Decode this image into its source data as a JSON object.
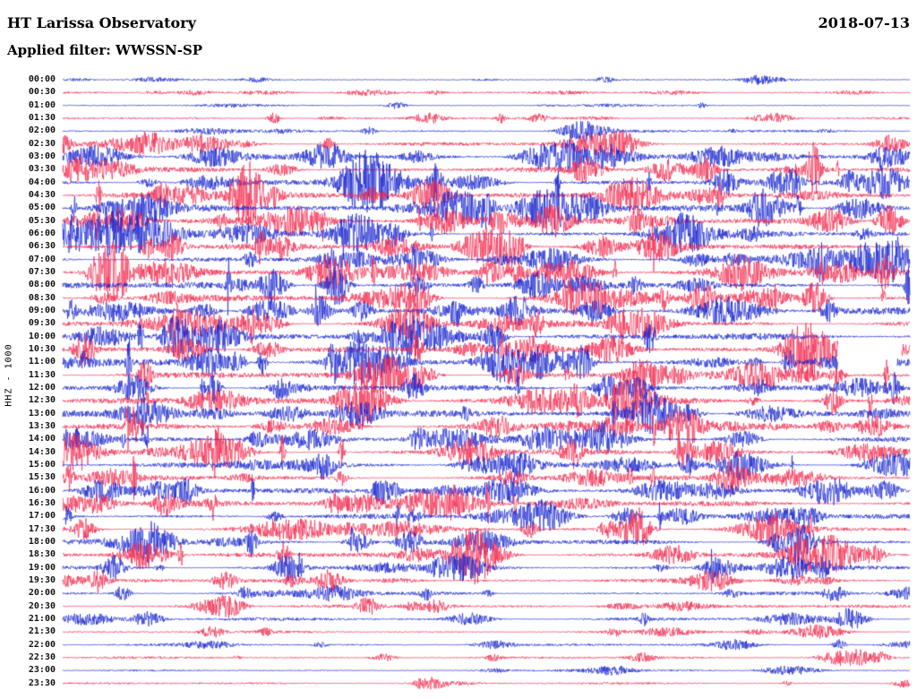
{
  "header": {
    "title": "HT Larissa Observatory",
    "date": "2018-07-13",
    "filter_label": "Applied filter: WWSSN-SP"
  },
  "chart_data": {
    "type": "line",
    "chart_kind": "helicorder-seismogram",
    "title": "HT Larissa Observatory",
    "date": "2018-07-13",
    "filter": "WWSSN-SP",
    "ylabel": "HHZ - 1000",
    "minutes_per_line": 30,
    "line_count": 48,
    "start_time": "00:00",
    "end_time": "23:30",
    "legend_position": "none",
    "grid": false,
    "colors": {
      "blue": "#1522cf",
      "red": "#f2274c"
    },
    "traces": [
      {
        "time": "00:00",
        "color": "blue",
        "activity": 0.8
      },
      {
        "time": "00:30",
        "color": "red",
        "activity": 1.0
      },
      {
        "time": "01:00",
        "color": "blue",
        "activity": 0.9
      },
      {
        "time": "01:30",
        "color": "red",
        "activity": 1.5
      },
      {
        "time": "02:00",
        "color": "blue",
        "activity": 1.7
      },
      {
        "time": "02:30",
        "color": "red",
        "activity": 2.3
      },
      {
        "time": "03:00",
        "color": "blue",
        "activity": 3.0
      },
      {
        "time": "03:30",
        "color": "red",
        "activity": 3.2
      },
      {
        "time": "04:00",
        "color": "blue",
        "activity": 3.8
      },
      {
        "time": "04:30",
        "color": "red",
        "activity": 4.0
      },
      {
        "time": "05:00",
        "color": "blue",
        "activity": 4.2
      },
      {
        "time": "05:30",
        "color": "red",
        "activity": 4.0
      },
      {
        "time": "06:00",
        "color": "blue",
        "activity": 4.2
      },
      {
        "time": "06:30",
        "color": "red",
        "activity": 3.8
      },
      {
        "time": "07:00",
        "color": "blue",
        "activity": 4.2
      },
      {
        "time": "07:30",
        "color": "red",
        "activity": 4.5
      },
      {
        "time": "08:00",
        "color": "blue",
        "activity": 4.2
      },
      {
        "time": "08:30",
        "color": "red",
        "activity": 4.2
      },
      {
        "time": "09:00",
        "color": "blue",
        "activity": 4.0
      },
      {
        "time": "09:30",
        "color": "red",
        "activity": 3.8
      },
      {
        "time": "10:00",
        "color": "blue",
        "activity": 4.0
      },
      {
        "time": "10:30",
        "color": "red",
        "activity": 4.0,
        "gap": [
          0.915,
          0.99
        ]
      },
      {
        "time": "11:00",
        "color": "blue",
        "activity": 4.5,
        "gap": [
          0.915,
          0.985
        ]
      },
      {
        "time": "11:30",
        "color": "red",
        "activity": 3.8
      },
      {
        "time": "12:00",
        "color": "blue",
        "activity": 3.6
      },
      {
        "time": "12:30",
        "color": "red",
        "activity": 4.0
      },
      {
        "time": "13:00",
        "color": "blue",
        "activity": 3.6
      },
      {
        "time": "13:30",
        "color": "red",
        "activity": 3.6
      },
      {
        "time": "14:00",
        "color": "blue",
        "activity": 3.0
      },
      {
        "time": "14:30",
        "color": "red",
        "activity": 3.4
      },
      {
        "time": "15:00",
        "color": "blue",
        "activity": 3.0
      },
      {
        "time": "15:30",
        "color": "red",
        "activity": 3.0
      },
      {
        "time": "16:00",
        "color": "blue",
        "activity": 3.4
      },
      {
        "time": "16:30",
        "color": "red",
        "activity": 3.4
      },
      {
        "time": "17:00",
        "color": "blue",
        "activity": 3.0
      },
      {
        "time": "17:30",
        "color": "red",
        "activity": 3.0
      },
      {
        "time": "18:00",
        "color": "blue",
        "activity": 3.0
      },
      {
        "time": "18:30",
        "color": "red",
        "activity": 3.4
      },
      {
        "time": "19:00",
        "color": "blue",
        "activity": 3.0
      },
      {
        "time": "19:30",
        "color": "red",
        "activity": 2.4
      },
      {
        "time": "20:00",
        "color": "blue",
        "activity": 2.2
      },
      {
        "time": "20:30",
        "color": "red",
        "activity": 2.0
      },
      {
        "time": "21:00",
        "color": "blue",
        "activity": 2.0
      },
      {
        "time": "21:30",
        "color": "red",
        "activity": 1.6
      },
      {
        "time": "22:00",
        "color": "blue",
        "activity": 1.5
      },
      {
        "time": "22:30",
        "color": "red",
        "activity": 1.4
      },
      {
        "time": "23:00",
        "color": "blue",
        "activity": 1.0
      },
      {
        "time": "23:30",
        "color": "red",
        "activity": 1.2
      }
    ]
  }
}
